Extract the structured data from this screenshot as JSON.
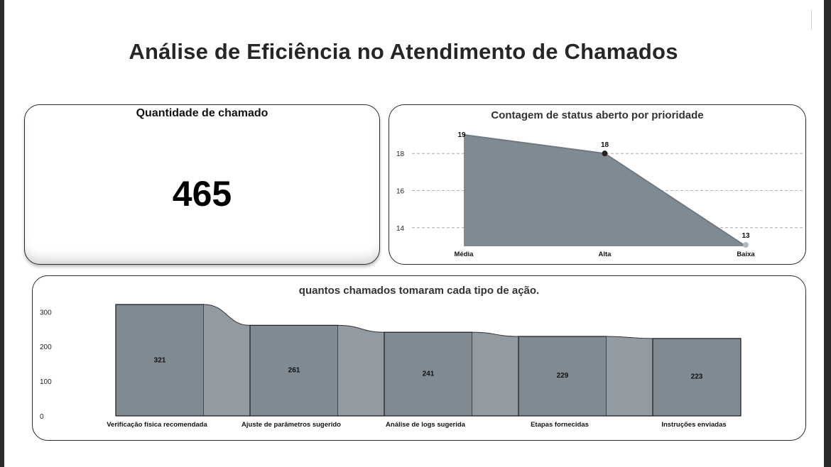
{
  "page": {
    "title": "Análise de Eficiência no Atendimento de Chamados"
  },
  "kpi": {
    "title": "Quantidade de chamado",
    "value": "465"
  },
  "colors": {
    "fill": "#7f8a93",
    "connector": "#939ba2",
    "line": "#6e7a82",
    "dark_point": "#2a2020",
    "light_point": "#b4b8bb",
    "grid": "#9a9a9a"
  },
  "chart_data": [
    {
      "type": "area",
      "title": "Contagem de status aberto por prioridade",
      "categories": [
        "Média",
        "Alta",
        "Baixa"
      ],
      "values": [
        19,
        18,
        13
      ],
      "ylim": [
        13,
        19
      ],
      "yticks": [
        14,
        16,
        18
      ],
      "grid": true,
      "data_labels": true
    },
    {
      "type": "bar",
      "title": "quantos chamados tomaram cada tipo de ação.",
      "categories": [
        "Verificação física recomendada",
        "Ajuste de parâmetros sugerido",
        "Análise de logs sugerida",
        "Etapas fornecidas",
        "Instruções enviadas"
      ],
      "values": [
        321,
        261,
        241,
        229,
        223
      ],
      "ylim": [
        0,
        321
      ],
      "yticks": [
        0,
        100,
        200,
        300
      ],
      "data_labels": true
    }
  ]
}
